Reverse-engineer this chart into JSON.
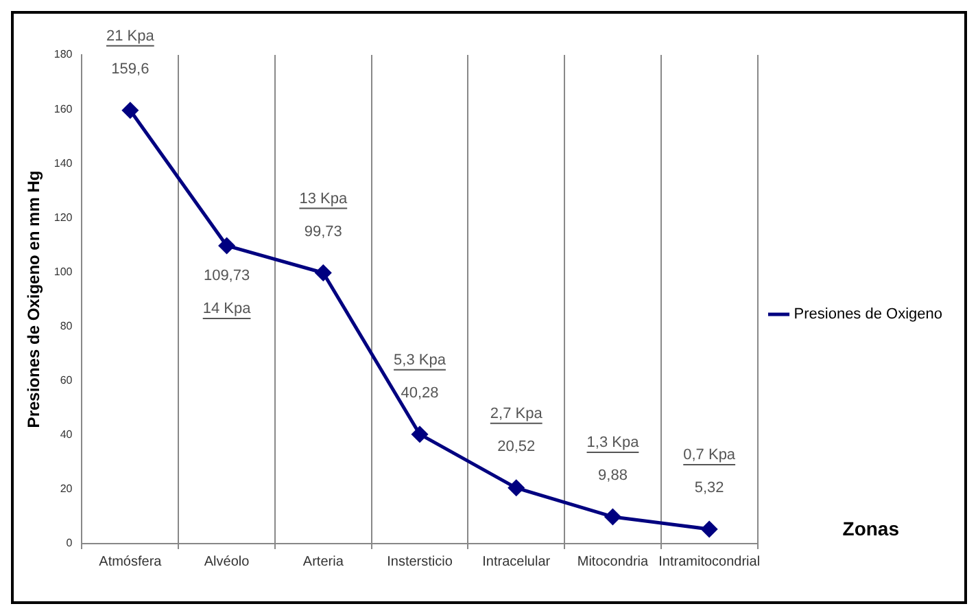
{
  "chart_data": {
    "type": "line",
    "ylabel": "Presiones de Oxigeno en mm Hg",
    "xlabel": "Zonas",
    "categories": [
      "Atmósfera",
      "Alvéolo",
      "Arteria",
      "Instersticio",
      "Intracelular",
      "Mitocondria",
      "Intramitocondrial"
    ],
    "series": [
      {
        "name": "Presiones de Oxigeno",
        "color": "#000080",
        "values": [
          159.6,
          109.73,
          99.73,
          40.28,
          20.52,
          9.88,
          5.32
        ],
        "value_labels": [
          "159,6",
          "109,73",
          "99,73",
          "40,28",
          "20,52",
          "9,88",
          "5,32"
        ]
      }
    ],
    "annotations": [
      "21 Kpa",
      "14 Kpa",
      "13 Kpa",
      "5,3 Kpa",
      "2,7 Kpa",
      "1,3 Kpa",
      "0,7 Kpa"
    ],
    "ylim": [
      0,
      180
    ],
    "yticks": [
      0,
      20,
      40,
      60,
      80,
      100,
      120,
      140,
      160,
      180
    ],
    "grid": "x",
    "legend": "right",
    "marker": "diamond",
    "line_style": "solid"
  }
}
